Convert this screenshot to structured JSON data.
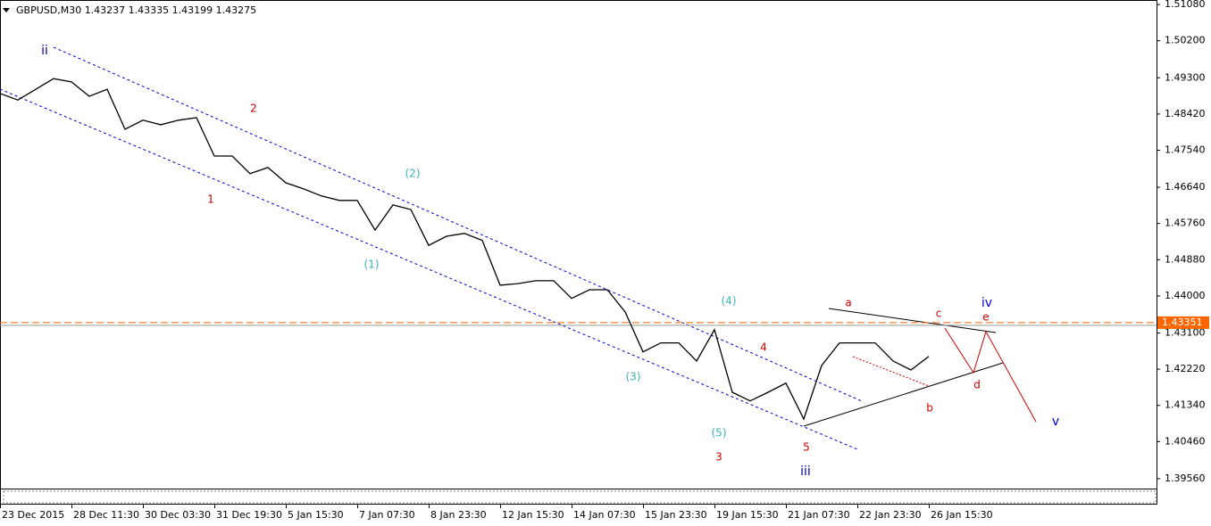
{
  "chart_data": {
    "type": "line",
    "title": "GBPUSD,M30  1.43237 1.43335 1.43199 1.43275",
    "categories": [
      "23 Dec 2015",
      null,
      null,
      null,
      "28 Dec 11:30",
      null,
      null,
      null,
      "30 Dec 03:30",
      null,
      null,
      null,
      "31 Dec 19:30",
      null,
      null,
      null,
      "5 Jan 15:30",
      null,
      null,
      null,
      "7 Jan 07:30",
      null,
      null,
      null,
      "8 Jan 23:30",
      null,
      null,
      null,
      "12 Jan 15:30",
      null,
      null,
      null,
      "14 Jan 07:30",
      null,
      null,
      null,
      "15 Jan 23:30",
      null,
      null,
      null,
      "19 Jan 15:30",
      null,
      null,
      null,
      "21 Jan 07:30",
      null,
      null,
      null,
      "22 Jan 23:30",
      null,
      null,
      null,
      "26 Jan 15:30"
    ],
    "series": [
      {
        "name": "GBPUSD",
        "color": "#000000",
        "values": [
          1.4892,
          1.4876,
          1.4902,
          1.4928,
          1.492,
          1.4885,
          1.4902,
          1.4805,
          1.4827,
          1.4816,
          1.4827,
          1.4833,
          1.474,
          1.474,
          1.4697,
          1.4712,
          1.4675,
          1.466,
          1.4643,
          1.4632,
          1.4632,
          1.456,
          1.4621,
          1.461,
          1.4523,
          1.4545,
          1.4552,
          1.4535,
          1.4426,
          1.443,
          1.4437,
          1.4437,
          1.4394,
          1.4415,
          1.4415,
          1.4361,
          1.4264,
          1.4286,
          1.4286,
          1.4242,
          1.4318,
          1.4166,
          1.4145,
          1.4166,
          1.4188,
          1.4101,
          1.4231,
          1.4286,
          1.4286,
          1.4286,
          1.4242,
          1.422,
          1.4253
        ]
      }
    ],
    "ylim": [
      1.3932,
      1.5119
    ],
    "yticks": [
      {
        "value": 1.5108,
        "label": "1.51080"
      },
      {
        "value": 1.502,
        "label": "1.50200"
      },
      {
        "value": 1.493,
        "label": "1.49300"
      },
      {
        "value": 1.4842,
        "label": "1.48420"
      },
      {
        "value": 1.4754,
        "label": "1.47540"
      },
      {
        "value": 1.4664,
        "label": "1.46640"
      },
      {
        "value": 1.4576,
        "label": "1.45760"
      },
      {
        "value": 1.4488,
        "label": "1.44880"
      },
      {
        "value": 1.44,
        "label": "1.44000"
      },
      {
        "value": 1.431,
        "label": "1.43100"
      },
      {
        "value": 1.4222,
        "label": "1.42220"
      },
      {
        "value": 1.4134,
        "label": "1.41340"
      },
      {
        "value": 1.4046,
        "label": "1.40460"
      },
      {
        "value": 1.3956,
        "label": "1.39560"
      }
    ],
    "current_price": {
      "value": 1.43351,
      "label": "1.43351",
      "color": "#ff6600"
    },
    "annotations": [
      {
        "text": "ii",
        "color": "#0000cc"
      },
      {
        "text": "2",
        "color": "#cc0000"
      },
      {
        "text": "1",
        "color": "#cc0000"
      },
      {
        "text": "(2)",
        "color": "#3cb3b3"
      },
      {
        "text": "(1)",
        "color": "#3cb3b3"
      },
      {
        "text": "(4)",
        "color": "#3cb3b3"
      },
      {
        "text": "(3)",
        "color": "#3cb3b3"
      },
      {
        "text": "(5)",
        "color": "#3cb3b3"
      },
      {
        "text": "3",
        "color": "#cc0000"
      },
      {
        "text": "4",
        "color": "#cc0000"
      },
      {
        "text": "5",
        "color": "#cc0000"
      },
      {
        "text": "iii",
        "color": "#0000cc"
      },
      {
        "text": "a",
        "color": "#cc0000"
      },
      {
        "text": "c",
        "color": "#cc0000"
      },
      {
        "text": "iv",
        "color": "#0000cc"
      },
      {
        "text": "e",
        "color": "#cc0000"
      },
      {
        "text": "b",
        "color": "#cc0000"
      },
      {
        "text": "d",
        "color": "#cc0000"
      },
      {
        "text": "v",
        "color": "#0000cc"
      }
    ]
  }
}
